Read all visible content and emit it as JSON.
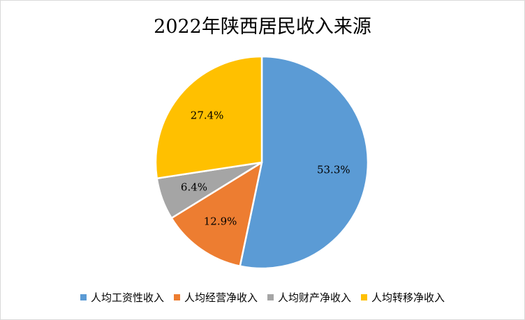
{
  "chart_data": {
    "type": "pie",
    "title": "2022年陕西居民收入来源",
    "categories": [
      "人均工资性收入",
      "人均经营净收入",
      "人均财产净收入",
      "人均转移净收入"
    ],
    "values": [
      53.3,
      12.9,
      6.4,
      27.4
    ],
    "labels": [
      "53.3%",
      "12.9%",
      "6.4%",
      "27.4%"
    ],
    "colors": [
      "#5b9bd5",
      "#ed7d31",
      "#a5a5a5",
      "#ffc000"
    ],
    "legend_position": "bottom"
  }
}
